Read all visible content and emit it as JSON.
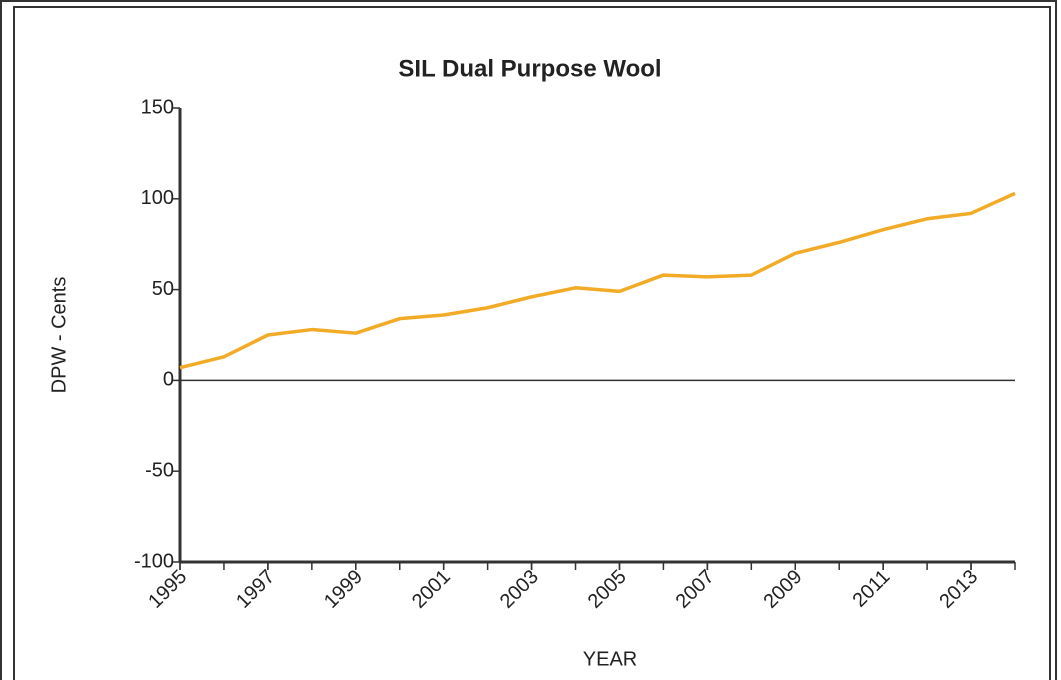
{
  "chart_data": {
    "type": "line",
    "title": "SIL Dual Purpose Wool",
    "x_label": "YEAR",
    "y_label": "DPW - Cents",
    "x": [
      1995,
      1996,
      1997,
      1998,
      1999,
      2000,
      2001,
      2002,
      2003,
      2004,
      2005,
      2006,
      2007,
      2008,
      2009,
      2010,
      2011,
      2012,
      2013,
      2014
    ],
    "series": [
      {
        "name": "DPW",
        "color": "#f2ab27",
        "values": [
          7,
          13,
          25,
          28,
          26,
          34,
          36,
          40,
          46,
          51,
          49,
          58,
          57,
          58,
          70,
          76,
          83,
          89,
          92,
          103
        ]
      }
    ],
    "xlim": [
      1995,
      2014
    ],
    "xticks": [
      1995,
      1997,
      1999,
      2001,
      2003,
      2005,
      2007,
      2009,
      2011,
      2013
    ],
    "ylim": [
      -100,
      150
    ],
    "yticks": [
      -100,
      -50,
      0,
      50,
      100,
      150
    ]
  }
}
